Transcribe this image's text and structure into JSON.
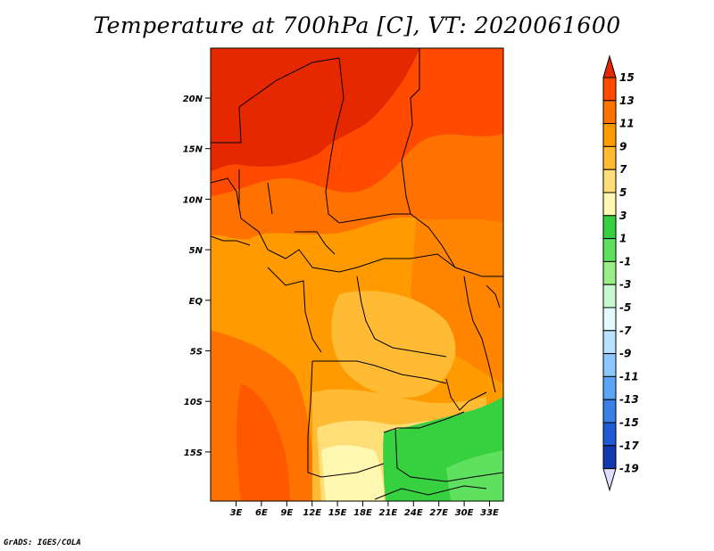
{
  "title": "Temperature at 700hPa [C], VT: 2020061600",
  "credit": "GrADS: IGES/COLA",
  "map": {
    "lat_labels": [
      "20N",
      "15N",
      "10N",
      "5N",
      "EQ",
      "5S",
      "10S",
      "15S"
    ],
    "lon_labels": [
      "3E",
      "6E",
      "9E",
      "12E",
      "15E",
      "18E",
      "21E",
      "24E",
      "27E",
      "30E",
      "33E"
    ],
    "background_color": "#ff9900"
  },
  "colorbar": {
    "labels": [
      "15",
      "13",
      "11",
      "9",
      "7",
      "5",
      "3",
      "1",
      "-1",
      "-3",
      "-5",
      "-7",
      "-9",
      "-11",
      "-13",
      "-15",
      "-17",
      "-19"
    ],
    "colors": [
      "#e62800",
      "#ff4a00",
      "#ff7200",
      "#ff9b00",
      "#ffbb33",
      "#ffdd77",
      "#fff8b0",
      "#37d03f",
      "#5fe05f",
      "#99ee88",
      "#c7f9cf",
      "#e3fbff",
      "#b8e2ff",
      "#8cc8ff",
      "#5aa5f5",
      "#3a80e8",
      "#1f5cd4",
      "#1339b0",
      "#0a1a78",
      "#000b50"
    ],
    "over_color": "#e62800",
    "under_color": "#dedcff"
  }
}
